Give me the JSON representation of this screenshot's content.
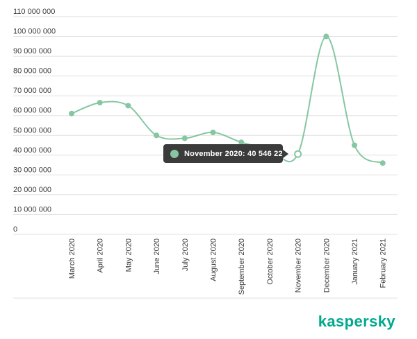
{
  "chart_data": {
    "type": "line",
    "title": "",
    "categories": [
      "March 2020",
      "April 2020",
      "May 2020",
      "June 2020",
      "July 2020",
      "August 2020",
      "September 2020",
      "October 2020",
      "November 2020",
      "December 2020",
      "January 2021",
      "February 2021"
    ],
    "values": [
      61000000,
      66500000,
      65000000,
      50000000,
      48500000,
      51500000,
      46500000,
      43000000,
      40546228,
      100000000,
      45000000,
      36000000
    ],
    "highlight_point": {
      "index": 8,
      "category": "November 2020",
      "value": 40546228
    },
    "y_tick_labels": [
      "0",
      "10 000 000",
      "20 000 000",
      "30 000 000",
      "40 000 000",
      "50 000 000",
      "60 000 000",
      "70 000 000",
      "80 000 000",
      "90 000 000",
      "100 000 000",
      "110 000 000"
    ],
    "y_tick_interval": 10000000,
    "ylim": [
      0,
      110000000
    ],
    "xlabel": "",
    "ylabel": "",
    "grid": true,
    "legend": "none",
    "line_color": "#86c6a2",
    "point_color": "#86c6a2",
    "highlight_fill": "#ffffff",
    "grid_color": "#e0e0e0",
    "axis_label_color": "#3c3c3c"
  },
  "tooltip": {
    "text": "November 2020: 40 546 228",
    "background": "#3b3b3b",
    "text_color": "#ffffff",
    "dot_color": "#86c6a2"
  },
  "logo": {
    "text": "kaspersky",
    "color": "#00a88e"
  }
}
